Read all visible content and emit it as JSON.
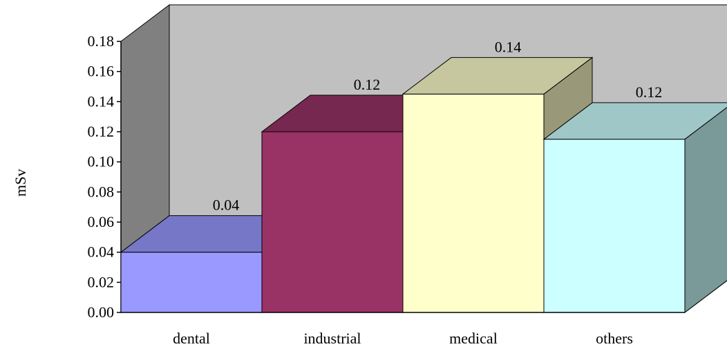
{
  "chart_data": {
    "type": "bar",
    "style": "3d-column",
    "title": "",
    "xlabel": "",
    "ylabel": "mSv",
    "ylim": [
      0,
      0.18
    ],
    "ytick_labels": [
      "0.00",
      "0.02",
      "0.04",
      "0.06",
      "0.08",
      "0.10",
      "0.12",
      "0.14",
      "0.16",
      "0.18"
    ],
    "categories": [
      "dental",
      "industrial",
      "medical",
      "others"
    ],
    "values": [
      0.04,
      0.12,
      0.145,
      0.115
    ],
    "data_labels": [
      "0.04",
      "0.12",
      "0.14",
      "0.12"
    ],
    "colors": [
      "#9999ff",
      "#993366",
      "#ffffcc",
      "#ccffff"
    ],
    "grid": false,
    "legend": "none",
    "walls_color": "#c0c0c0",
    "side_wall_color": "#808080"
  }
}
